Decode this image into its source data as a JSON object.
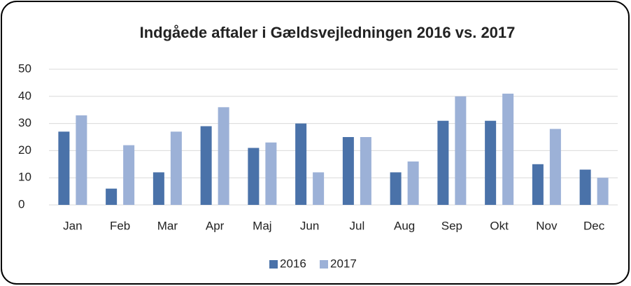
{
  "chart_data": {
    "type": "bar",
    "title": "Indgåede aftaler i Gældsvejledningen 2016 vs. 2017",
    "categories": [
      "Jan",
      "Feb",
      "Mar",
      "Apr",
      "Maj",
      "Jun",
      "Jul",
      "Aug",
      "Sep",
      "Okt",
      "Nov",
      "Dec"
    ],
    "series": [
      {
        "name": "2016",
        "color": "#4a72a9",
        "values": [
          27,
          6,
          12,
          29,
          21,
          30,
          25,
          12,
          31,
          31,
          15,
          13
        ]
      },
      {
        "name": "2017",
        "color": "#9cb1d7",
        "values": [
          33,
          22,
          27,
          36,
          23,
          12,
          25,
          16,
          40,
          41,
          28,
          10
        ]
      }
    ],
    "ylim": [
      0,
      50
    ],
    "yticks": [
      0,
      10,
      20,
      30,
      40,
      50
    ],
    "grid": true,
    "legend": "bottom"
  }
}
